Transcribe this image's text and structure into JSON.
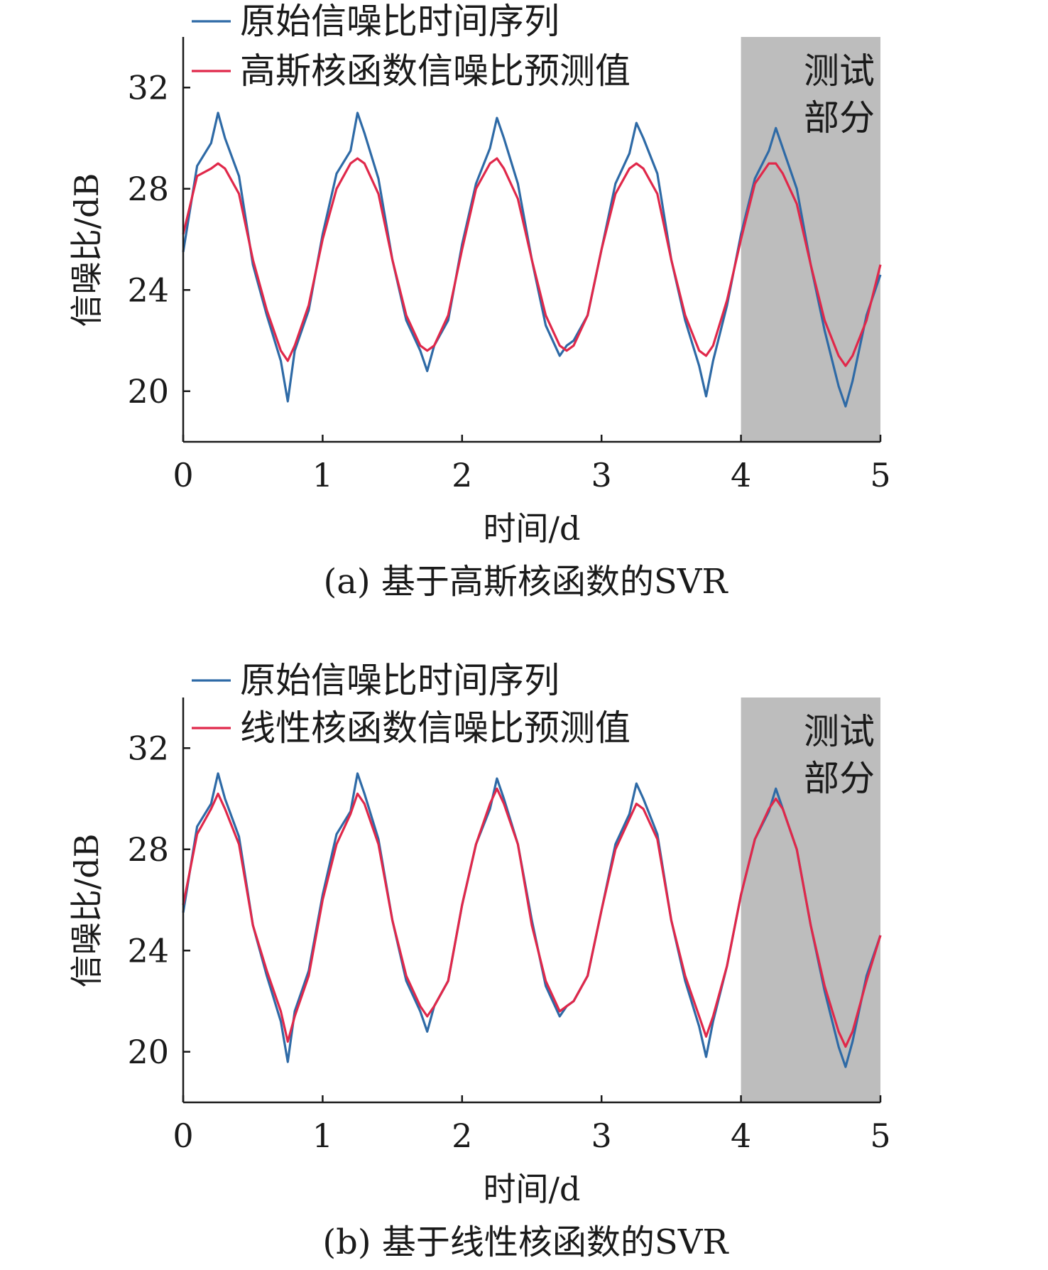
{
  "colors": {
    "original": "#2e6aa6",
    "predicted": "#e0284a",
    "test_shade": "#bdbdbd",
    "axis": "#1a1a1a"
  },
  "chart_data": [
    {
      "type": "line",
      "caption": "(a) 基于高斯核函数的SVR",
      "xlabel": "时间/d",
      "ylabel": "信噪比/dB",
      "xlim": [
        0,
        5
      ],
      "ylim": [
        18,
        34
      ],
      "xticks": [
        0,
        1,
        2,
        3,
        4,
        5
      ],
      "yticks": [
        20,
        24,
        28,
        32
      ],
      "legend_position": "top-left",
      "test_region": {
        "x_range": [
          4,
          5
        ],
        "label_lines": [
          "测试",
          "部分"
        ]
      },
      "series": [
        {
          "name": "原始信噪比时间序列",
          "x": [
            0,
            0.1,
            0.2,
            0.25,
            0.3,
            0.4,
            0.5,
            0.6,
            0.7,
            0.75,
            0.8,
            0.9,
            1.0,
            1.1,
            1.2,
            1.25,
            1.3,
            1.4,
            1.5,
            1.6,
            1.7,
            1.75,
            1.8,
            1.9,
            2.0,
            2.1,
            2.2,
            2.25,
            2.3,
            2.4,
            2.5,
            2.6,
            2.7,
            2.75,
            2.8,
            2.9,
            3.0,
            3.1,
            3.2,
            3.25,
            3.3,
            3.4,
            3.5,
            3.6,
            3.7,
            3.75,
            3.8,
            3.9,
            4.0,
            4.1,
            4.2,
            4.25,
            4.3,
            4.4,
            4.5,
            4.6,
            4.7,
            4.75,
            4.8,
            4.9,
            5.0
          ],
          "y": [
            25.5,
            28.9,
            29.8,
            31.0,
            30.0,
            28.5,
            25.0,
            23.0,
            21.2,
            19.6,
            21.6,
            23.2,
            26.2,
            28.6,
            29.5,
            31.0,
            30.2,
            28.4,
            25.2,
            22.8,
            21.6,
            20.8,
            21.8,
            22.8,
            25.8,
            28.2,
            29.6,
            30.8,
            30.0,
            28.2,
            25.2,
            22.6,
            21.4,
            21.8,
            22.0,
            23.0,
            25.6,
            28.2,
            29.4,
            30.6,
            30.0,
            28.6,
            25.2,
            22.8,
            21.0,
            19.8,
            21.2,
            23.4,
            26.2,
            28.4,
            29.5,
            30.4,
            29.6,
            28.0,
            25.0,
            22.4,
            20.2,
            19.4,
            20.4,
            23.0,
            24.6
          ]
        },
        {
          "name": "高斯核函数信噪比预测值",
          "x": [
            0,
            0.1,
            0.2,
            0.25,
            0.3,
            0.4,
            0.5,
            0.6,
            0.7,
            0.75,
            0.8,
            0.9,
            1.0,
            1.1,
            1.2,
            1.25,
            1.3,
            1.4,
            1.5,
            1.6,
            1.7,
            1.75,
            1.8,
            1.9,
            2.0,
            2.1,
            2.2,
            2.25,
            2.3,
            2.4,
            2.5,
            2.6,
            2.7,
            2.75,
            2.8,
            2.9,
            3.0,
            3.1,
            3.2,
            3.25,
            3.3,
            3.4,
            3.5,
            3.6,
            3.7,
            3.75,
            3.8,
            3.9,
            4.0,
            4.1,
            4.2,
            4.25,
            4.3,
            4.4,
            4.5,
            4.6,
            4.7,
            4.75,
            4.8,
            4.9,
            5.0
          ],
          "y": [
            26.2,
            28.5,
            28.8,
            29.0,
            28.8,
            27.8,
            25.2,
            23.2,
            21.6,
            21.2,
            21.8,
            23.4,
            26.0,
            28.0,
            29.0,
            29.2,
            29.0,
            27.8,
            25.2,
            23.0,
            21.8,
            21.6,
            21.8,
            23.0,
            25.6,
            28.0,
            29.0,
            29.2,
            28.8,
            27.6,
            25.2,
            23.0,
            21.8,
            21.6,
            21.8,
            23.0,
            25.6,
            27.8,
            28.8,
            29.0,
            28.8,
            27.8,
            25.2,
            23.0,
            21.6,
            21.4,
            21.8,
            23.6,
            26.0,
            28.2,
            29.0,
            29.0,
            28.6,
            27.4,
            25.0,
            22.8,
            21.4,
            21.0,
            21.4,
            22.8,
            25.0
          ]
        }
      ]
    },
    {
      "type": "line",
      "caption": "(b) 基于线性核函数的SVR",
      "xlabel": "时间/d",
      "ylabel": "信噪比/dB",
      "xlim": [
        0,
        5
      ],
      "ylim": [
        18,
        34
      ],
      "xticks": [
        0,
        1,
        2,
        3,
        4,
        5
      ],
      "yticks": [
        20,
        24,
        28,
        32
      ],
      "legend_position": "top-left",
      "test_region": {
        "x_range": [
          4,
          5
        ],
        "label_lines": [
          "测试",
          "部分"
        ]
      },
      "series": [
        {
          "name": "原始信噪比时间序列",
          "x": [
            0,
            0.1,
            0.2,
            0.25,
            0.3,
            0.4,
            0.5,
            0.6,
            0.7,
            0.75,
            0.8,
            0.9,
            1.0,
            1.1,
            1.2,
            1.25,
            1.3,
            1.4,
            1.5,
            1.6,
            1.7,
            1.75,
            1.8,
            1.9,
            2.0,
            2.1,
            2.2,
            2.25,
            2.3,
            2.4,
            2.5,
            2.6,
            2.7,
            2.75,
            2.8,
            2.9,
            3.0,
            3.1,
            3.2,
            3.25,
            3.3,
            3.4,
            3.5,
            3.6,
            3.7,
            3.75,
            3.8,
            3.9,
            4.0,
            4.1,
            4.2,
            4.25,
            4.3,
            4.4,
            4.5,
            4.6,
            4.7,
            4.75,
            4.8,
            4.9,
            5.0
          ],
          "y": [
            25.5,
            28.9,
            29.8,
            31.0,
            30.0,
            28.5,
            25.0,
            23.0,
            21.2,
            19.6,
            21.6,
            23.2,
            26.2,
            28.6,
            29.5,
            31.0,
            30.2,
            28.4,
            25.2,
            22.8,
            21.6,
            20.8,
            21.8,
            22.8,
            25.8,
            28.2,
            29.6,
            30.8,
            30.0,
            28.2,
            25.2,
            22.6,
            21.4,
            21.8,
            22.0,
            23.0,
            25.6,
            28.2,
            29.4,
            30.6,
            30.0,
            28.6,
            25.2,
            22.8,
            21.0,
            19.8,
            21.2,
            23.4,
            26.2,
            28.4,
            29.5,
            30.4,
            29.6,
            28.0,
            25.0,
            22.4,
            20.2,
            19.4,
            20.4,
            23.0,
            24.6
          ]
        },
        {
          "name": "线性核函数信噪比预测值",
          "x": [
            0,
            0.1,
            0.2,
            0.25,
            0.3,
            0.4,
            0.5,
            0.6,
            0.7,
            0.75,
            0.8,
            0.9,
            1.0,
            1.1,
            1.2,
            1.25,
            1.3,
            1.4,
            1.5,
            1.6,
            1.7,
            1.75,
            1.8,
            1.9,
            2.0,
            2.1,
            2.2,
            2.25,
            2.3,
            2.4,
            2.5,
            2.6,
            2.7,
            2.75,
            2.8,
            2.9,
            3.0,
            3.1,
            3.2,
            3.25,
            3.3,
            3.4,
            3.5,
            3.6,
            3.7,
            3.75,
            3.8,
            3.9,
            4.0,
            4.1,
            4.2,
            4.25,
            4.3,
            4.4,
            4.5,
            4.6,
            4.7,
            4.75,
            4.8,
            4.9,
            5.0
          ],
          "y": [
            25.8,
            28.6,
            29.6,
            30.2,
            29.6,
            28.2,
            25.0,
            23.2,
            21.6,
            20.4,
            21.4,
            23.0,
            26.0,
            28.2,
            29.4,
            30.2,
            29.8,
            28.2,
            25.2,
            23.0,
            21.8,
            21.4,
            21.8,
            22.8,
            25.8,
            28.2,
            29.8,
            30.4,
            29.8,
            28.2,
            25.0,
            22.8,
            21.6,
            21.8,
            22.0,
            23.0,
            25.6,
            28.0,
            29.2,
            29.8,
            29.6,
            28.4,
            25.2,
            23.0,
            21.4,
            20.6,
            21.4,
            23.4,
            26.2,
            28.4,
            29.6,
            30.0,
            29.6,
            28.0,
            25.0,
            22.6,
            20.8,
            20.2,
            20.8,
            22.8,
            24.6
          ]
        }
      ]
    }
  ]
}
